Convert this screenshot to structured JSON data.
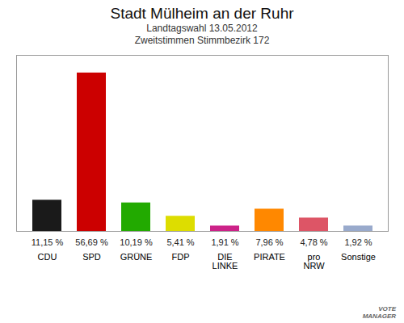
{
  "chart_data": {
    "type": "bar",
    "title": "Stadt Mülheim an der Ruhr",
    "subtitle": [
      "Landtagswahl 13.05.2012",
      "Zweitstimmen Stimmbezirk 172"
    ],
    "categories": [
      "CDU",
      "SPD",
      "GRÜNE",
      "FDP",
      "DIE\nLINKE",
      "PIRATE",
      "pro\nNRW",
      "Sonstige"
    ],
    "values": [
      11.15,
      56.69,
      10.19,
      5.41,
      1.91,
      7.96,
      4.78,
      1.92
    ],
    "value_labels": [
      "11,15 %",
      "56,69 %",
      "10,19 %",
      "5,41 %",
      "1,91 %",
      "7,96 %",
      "4,78 %",
      "1,92 %"
    ],
    "colors": [
      "#1a1a1a",
      "#cc0000",
      "#22aa00",
      "#dddd00",
      "#cc2288",
      "#ff8800",
      "#dd5566",
      "#99aacc"
    ],
    "ylim": [
      0,
      63
    ],
    "data_labels": true,
    "tick_labels": "x",
    "annotations": [
      "VOTE\nMANAGER"
    ]
  }
}
